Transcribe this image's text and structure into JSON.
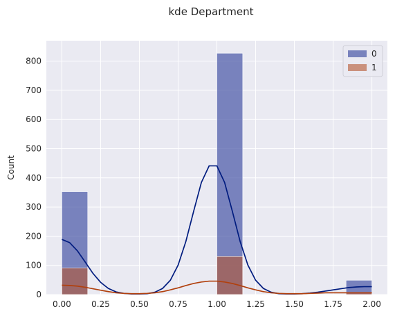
{
  "chart_data": {
    "type": "bar",
    "title": "kde Department",
    "xlabel": "",
    "ylabel": "Count",
    "xlim": [
      -0.1,
      2.1
    ],
    "ylim": [
      0,
      870
    ],
    "x_ticks": [
      "0.00",
      "0.25",
      "0.50",
      "0.75",
      "1.00",
      "1.25",
      "1.50",
      "1.75",
      "2.00"
    ],
    "x_tick_values": [
      0,
      0.25,
      0.5,
      0.75,
      1.0,
      1.25,
      1.5,
      1.75,
      2.0
    ],
    "y_ticks": [
      "0",
      "100",
      "200",
      "300",
      "400",
      "500",
      "600",
      "700",
      "800"
    ],
    "y_tick_values": [
      0,
      100,
      200,
      300,
      400,
      500,
      600,
      700,
      800
    ],
    "grid": true,
    "legend_position": "top-right",
    "bin_edges": [
      0.0,
      0.1667,
      0.3333,
      0.5,
      0.6667,
      0.8333,
      1.0,
      1.1667,
      1.3333,
      1.5,
      1.6667,
      1.8333,
      2.0
    ],
    "series": [
      {
        "name": "0",
        "color": "#4c5aa8",
        "counts": [
          353,
          0,
          0,
          0,
          0,
          0,
          827,
          0,
          0,
          0,
          0,
          49
        ],
        "kde": {
          "x": [
            0.0,
            0.05,
            0.1,
            0.15,
            0.2,
            0.25,
            0.3,
            0.35,
            0.4,
            0.45,
            0.5,
            0.55,
            0.6,
            0.65,
            0.7,
            0.75,
            0.8,
            0.85,
            0.9,
            0.95,
            1.0,
            1.05,
            1.1,
            1.15,
            1.2,
            1.25,
            1.3,
            1.35,
            1.4,
            1.45,
            1.5,
            1.55,
            1.6,
            1.65,
            1.7,
            1.75,
            1.8,
            1.85,
            1.9,
            1.95,
            2.0
          ],
          "y": [
            189,
            178,
            150,
            112,
            73,
            42,
            21,
            9,
            4,
            2,
            2,
            3,
            8,
            21,
            49,
            101,
            182,
            285,
            384,
            441,
            441,
            384,
            285,
            182,
            101,
            49,
            21,
            8,
            3,
            2,
            2,
            3,
            5,
            8,
            12,
            16,
            20,
            24,
            26,
            27,
            27
          ]
        }
      },
      {
        "name": "1",
        "color": "#b4552f",
        "counts": [
          91,
          0,
          0,
          0,
          0,
          0,
          131,
          0,
          0,
          0,
          0,
          7
        ],
        "kde": {
          "x": [
            0.0,
            0.05,
            0.1,
            0.15,
            0.2,
            0.25,
            0.3,
            0.35,
            0.4,
            0.45,
            0.5,
            0.55,
            0.6,
            0.65,
            0.7,
            0.75,
            0.8,
            0.85,
            0.9,
            0.95,
            1.0,
            1.05,
            1.1,
            1.15,
            1.2,
            1.25,
            1.3,
            1.35,
            1.4,
            1.45,
            1.5,
            1.55,
            1.6,
            1.65,
            1.7,
            1.75,
            1.8,
            1.85,
            1.9,
            1.95,
            2.0
          ],
          "y": [
            32,
            31,
            29,
            25,
            20,
            15,
            10,
            6,
            4,
            3,
            3,
            4,
            6,
            10,
            16,
            23,
            31,
            38,
            43,
            46,
            46,
            43,
            38,
            31,
            23,
            16,
            10,
            6,
            4,
            3,
            3,
            3,
            4,
            5,
            6,
            6,
            6,
            6,
            6,
            6,
            6
          ]
        }
      }
    ]
  },
  "colors": {
    "plot_background": "#eaeaf2",
    "grid": "#ffffff",
    "kde_0": "#001c7f",
    "kde_1": "#b1400d"
  }
}
